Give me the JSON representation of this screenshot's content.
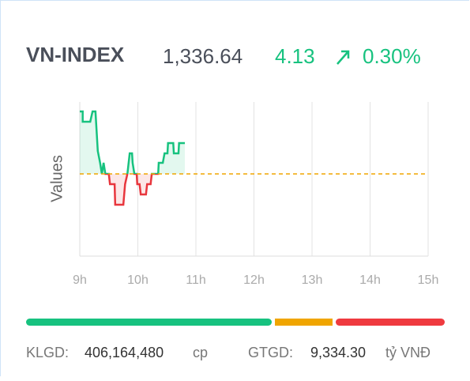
{
  "header": {
    "symbol": "VN-INDEX",
    "price": "1,336.64",
    "change": "4.13",
    "change_percent": "0.30%"
  },
  "chart_data": {
    "type": "line",
    "ylabel": "Values",
    "x": [
      9.0,
      9.05,
      9.05,
      9.18,
      9.22,
      9.27,
      9.31,
      9.35,
      9.38,
      9.41,
      9.44,
      9.5,
      9.52,
      9.6,
      9.61,
      9.75,
      9.78,
      9.82,
      9.86,
      9.9,
      9.91,
      9.94,
      9.98,
      9.99,
      10.03,
      10.05,
      10.14,
      10.16,
      10.22,
      10.24,
      10.35,
      10.36,
      10.43,
      10.46,
      10.51,
      10.52,
      10.61,
      10.62,
      10.7,
      10.71,
      10.81
    ],
    "series": [
      {
        "color": "#17c27f",
        "down_color": "#e8363d",
        "values": [
          1338.59,
          1338.59,
          1337.59,
          1337.59,
          1338.59,
          1338.59,
          1334.74,
          1333.59,
          1332.51,
          1333.59,
          1332.51,
          1332.51,
          1331.51,
          1331.51,
          1329.51,
          1329.51,
          1331.51,
          1332.51,
          1334.51,
          1334.51,
          1333.59,
          1332.51,
          1332.51,
          1331.51,
          1331.51,
          1330.51,
          1330.51,
          1331.51,
          1331.51,
          1332.51,
          1332.51,
          1333.59,
          1333.59,
          1334.51,
          1334.51,
          1335.51,
          1335.51,
          1334.51,
          1334.51,
          1335.51,
          1335.51
        ]
      }
    ],
    "reference": 1332.51,
    "reference_color": "#f0a500",
    "xlim": [
      9,
      15
    ],
    "xticks": [
      {
        "value": 9,
        "label": "9h"
      },
      {
        "value": 10,
        "label": "10h"
      },
      {
        "value": 11,
        "label": "11h"
      },
      {
        "value": 12,
        "label": "12h"
      },
      {
        "value": 13,
        "label": "13h"
      },
      {
        "value": 14,
        "label": "14h"
      },
      {
        "value": 15,
        "label": "15h"
      }
    ],
    "ylim": [
      1324.51,
      1339.51
    ],
    "grid": true
  },
  "footer": {
    "volume_label": "KLGD:",
    "volume": "406,164,480",
    "volume_unit": "cp",
    "value_label": "GTGD:",
    "value": "9,334.30",
    "value_unit": "tỷ VNĐ"
  }
}
